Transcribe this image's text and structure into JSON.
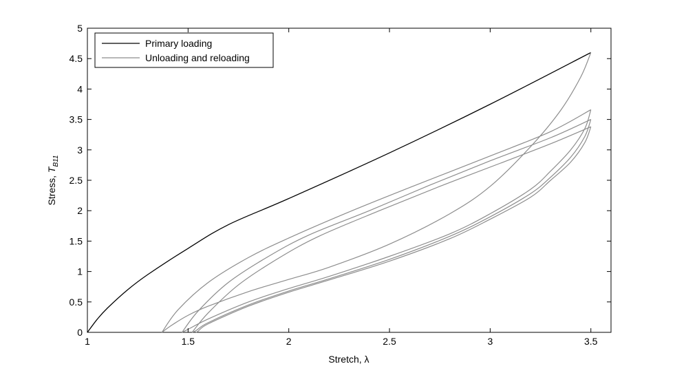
{
  "chart_data": {
    "type": "line",
    "xlabel": "Stretch, λ",
    "ylabel_prefix": "Stress, ",
    "ylabel_symbol": "T",
    "ylabel_subscript": "B11",
    "xlim": [
      1,
      3.6
    ],
    "ylim": [
      0,
      5
    ],
    "xticks": [
      1,
      1.5,
      2,
      2.5,
      3,
      3.5
    ],
    "yticks": [
      0,
      0.5,
      1,
      1.5,
      2,
      2.5,
      3,
      3.5,
      4,
      4.5,
      5
    ],
    "xtick_labels": [
      "1",
      "1.5",
      "2",
      "2.5",
      "3",
      "3.5"
    ],
    "ytick_labels": [
      "0",
      "0.5",
      "1",
      "1.5",
      "2",
      "2.5",
      "3",
      "3.5",
      "4",
      "4.5",
      "5"
    ],
    "grid": false,
    "legend_position": "top-left",
    "legend": [
      "Primary loading",
      "Unloading and reloading"
    ],
    "colors": {
      "primary": "#000000",
      "cycles": "#8c8c8c"
    },
    "series": [
      {
        "name": "Primary loading",
        "x": [
          1.0,
          1.05,
          1.1,
          1.2,
          1.3,
          1.5,
          1.7,
          2.0,
          2.5,
          3.0,
          3.5
        ],
        "y": [
          0.0,
          0.22,
          0.4,
          0.7,
          0.95,
          1.38,
          1.77,
          2.2,
          2.95,
          3.75,
          4.6
        ]
      },
      {
        "name": "Unloading and reloading",
        "segments": [
          {
            "x": [
              3.5,
              3.45,
              3.35,
              3.2,
              3.0,
              2.8,
              2.5,
              2.2,
              2.0,
              1.8,
              1.6,
              1.5,
              1.42,
              1.37
            ],
            "y": [
              4.6,
              4.2,
              3.65,
              3.05,
              2.4,
              1.95,
              1.45,
              1.07,
              0.87,
              0.67,
              0.43,
              0.28,
              0.12,
              0.0
            ]
          },
          {
            "x": [
              1.37,
              1.45,
              1.6,
              1.8,
              2.0,
              2.3,
              2.6,
              3.0,
              3.3,
              3.5
            ],
            "y": [
              0.0,
              0.37,
              0.82,
              1.23,
              1.55,
              1.98,
              2.38,
              2.9,
              3.3,
              3.66
            ]
          },
          {
            "x": [
              3.5,
              3.47,
              3.4,
              3.3,
              3.2,
              3.0,
              2.8,
              2.5,
              2.2,
              2.0,
              1.8,
              1.6,
              1.5,
              1.47
            ],
            "y": [
              3.66,
              3.35,
              3.0,
              2.65,
              2.35,
              1.95,
              1.62,
              1.25,
              0.92,
              0.72,
              0.5,
              0.22,
              0.05,
              0.0
            ]
          },
          {
            "x": [
              1.47,
              1.55,
              1.7,
              1.9,
              2.1,
              2.4,
              2.7,
              3.0,
              3.3,
              3.5
            ],
            "y": [
              0.0,
              0.35,
              0.82,
              1.25,
              1.6,
              2.0,
              2.42,
              2.82,
              3.2,
              3.5
            ]
          },
          {
            "x": [
              3.5,
              3.47,
              3.4,
              3.3,
              3.2,
              3.0,
              2.8,
              2.5,
              2.2,
              2.0,
              1.8,
              1.6,
              1.54,
              1.52
            ],
            "y": [
              3.5,
              3.22,
              2.88,
              2.55,
              2.28,
              1.9,
              1.58,
              1.2,
              0.88,
              0.68,
              0.45,
              0.16,
              0.03,
              0.0
            ]
          },
          {
            "x": [
              1.52,
              1.6,
              1.75,
              1.95,
              2.15,
              2.45,
              2.75,
              3.05,
              3.3,
              3.5
            ],
            "y": [
              0.0,
              0.32,
              0.78,
              1.22,
              1.58,
              2.0,
              2.4,
              2.78,
              3.1,
              3.38
            ]
          },
          {
            "x": [
              3.5,
              3.47,
              3.4,
              3.3,
              3.2,
              3.0,
              2.8,
              2.5,
              2.2,
              2.0,
              1.8,
              1.6,
              1.55,
              1.54
            ],
            "y": [
              3.38,
              3.12,
              2.8,
              2.5,
              2.22,
              1.86,
              1.54,
              1.17,
              0.86,
              0.66,
              0.43,
              0.14,
              0.02,
              0.0
            ]
          }
        ]
      }
    ]
  }
}
